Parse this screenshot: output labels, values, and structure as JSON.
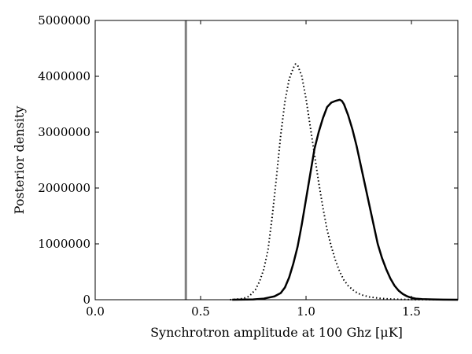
{
  "chart_data": {
    "type": "line",
    "title": "",
    "xlabel": "Synchrotron amplitude at 100 Ghz [μK]",
    "ylabel": "Posterior density",
    "xlim": [
      0.0,
      1.72
    ],
    "ylim": [
      0,
      5000000
    ],
    "xticks": [
      0.0,
      0.5,
      1.0,
      1.5
    ],
    "xtick_labels": [
      "0.0",
      "0.5",
      "1.0",
      "1.5"
    ],
    "yticks": [
      0,
      1000000,
      2000000,
      3000000,
      4000000,
      5000000
    ],
    "ytick_labels": [
      "0",
      "1000000",
      "2000000",
      "3000000",
      "4000000",
      "5000000"
    ],
    "grid": false,
    "colors": {
      "solid": "#000000",
      "dotted": "#000000",
      "reference": "#808080"
    },
    "reference_line": {
      "x": 0.43
    },
    "series": [
      {
        "style": "solid",
        "x": [
          0.65,
          0.75,
          0.8,
          0.85,
          0.88,
          0.9,
          0.92,
          0.94,
          0.96,
          0.98,
          1.0,
          1.02,
          1.04,
          1.06,
          1.08,
          1.1,
          1.12,
          1.14,
          1.16,
          1.17,
          1.18,
          1.2,
          1.22,
          1.24,
          1.26,
          1.28,
          1.3,
          1.32,
          1.34,
          1.36,
          1.38,
          1.4,
          1.42,
          1.44,
          1.46,
          1.48,
          1.5,
          1.52,
          1.55,
          1.6,
          1.65,
          1.72
        ],
        "y": [
          0,
          5000,
          20000,
          60000,
          120000,
          220000,
          400000,
          650000,
          950000,
          1350000,
          1800000,
          2250000,
          2700000,
          3000000,
          3250000,
          3450000,
          3530000,
          3560000,
          3580000,
          3560000,
          3500000,
          3300000,
          3050000,
          2750000,
          2400000,
          2050000,
          1700000,
          1350000,
          1000000,
          750000,
          550000,
          380000,
          250000,
          160000,
          100000,
          60000,
          35000,
          20000,
          10000,
          5000,
          2000,
          0
        ]
      },
      {
        "style": "dotted",
        "x": [
          0.64,
          0.7,
          0.73,
          0.76,
          0.78,
          0.8,
          0.82,
          0.84,
          0.86,
          0.88,
          0.9,
          0.92,
          0.94,
          0.95,
          0.96,
          0.98,
          1.0,
          1.02,
          1.04,
          1.06,
          1.08,
          1.1,
          1.12,
          1.14,
          1.16,
          1.18,
          1.2,
          1.23,
          1.26,
          1.3,
          1.35,
          1.4,
          1.45,
          1.5,
          1.6,
          1.72
        ],
        "y": [
          0,
          20000,
          60000,
          180000,
          330000,
          550000,
          900000,
          1500000,
          2200000,
          2950000,
          3550000,
          3950000,
          4150000,
          4220000,
          4200000,
          4000000,
          3600000,
          3100000,
          2600000,
          2100000,
          1650000,
          1250000,
          950000,
          700000,
          500000,
          350000,
          250000,
          150000,
          90000,
          50000,
          25000,
          12000,
          6000,
          3000,
          1000,
          0
        ]
      }
    ]
  }
}
